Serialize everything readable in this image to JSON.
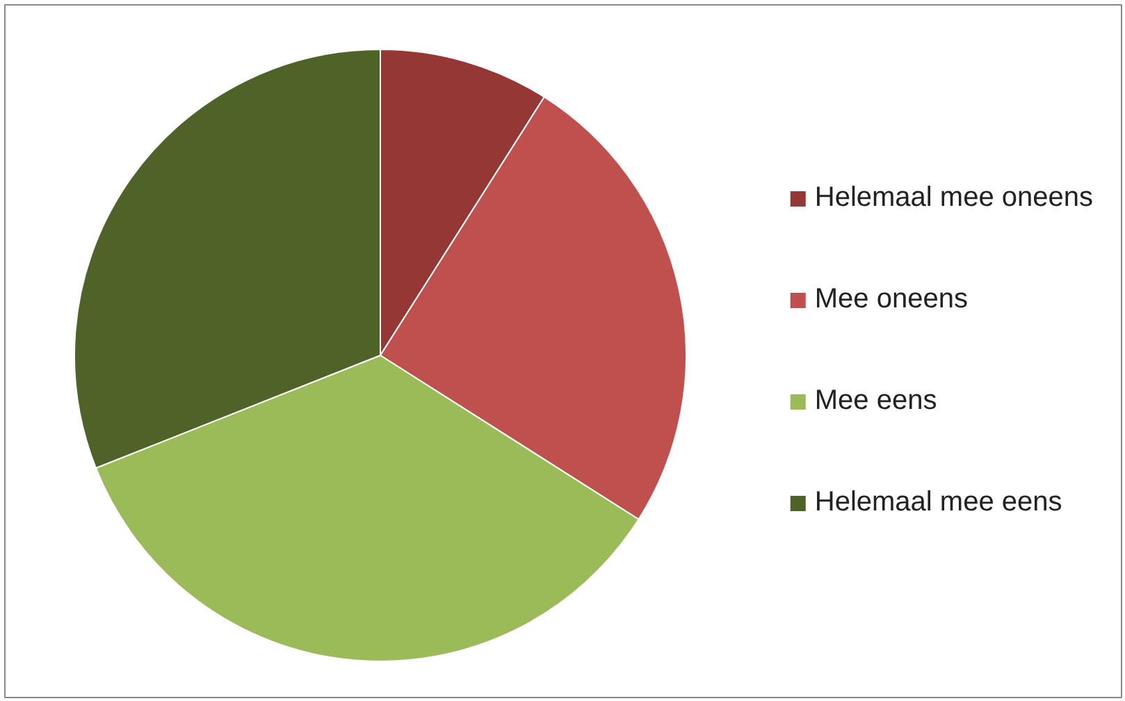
{
  "chart_data": {
    "type": "pie",
    "categories": [
      "Helemaal mee oneens",
      "Mee oneens",
      "Mee eens",
      "Helemaal mee eens"
    ],
    "values": [
      9,
      25,
      35,
      31
    ],
    "colors": [
      "#953735",
      "#c0504d",
      "#9bbb59",
      "#4f6228"
    ],
    "legend": "right"
  }
}
